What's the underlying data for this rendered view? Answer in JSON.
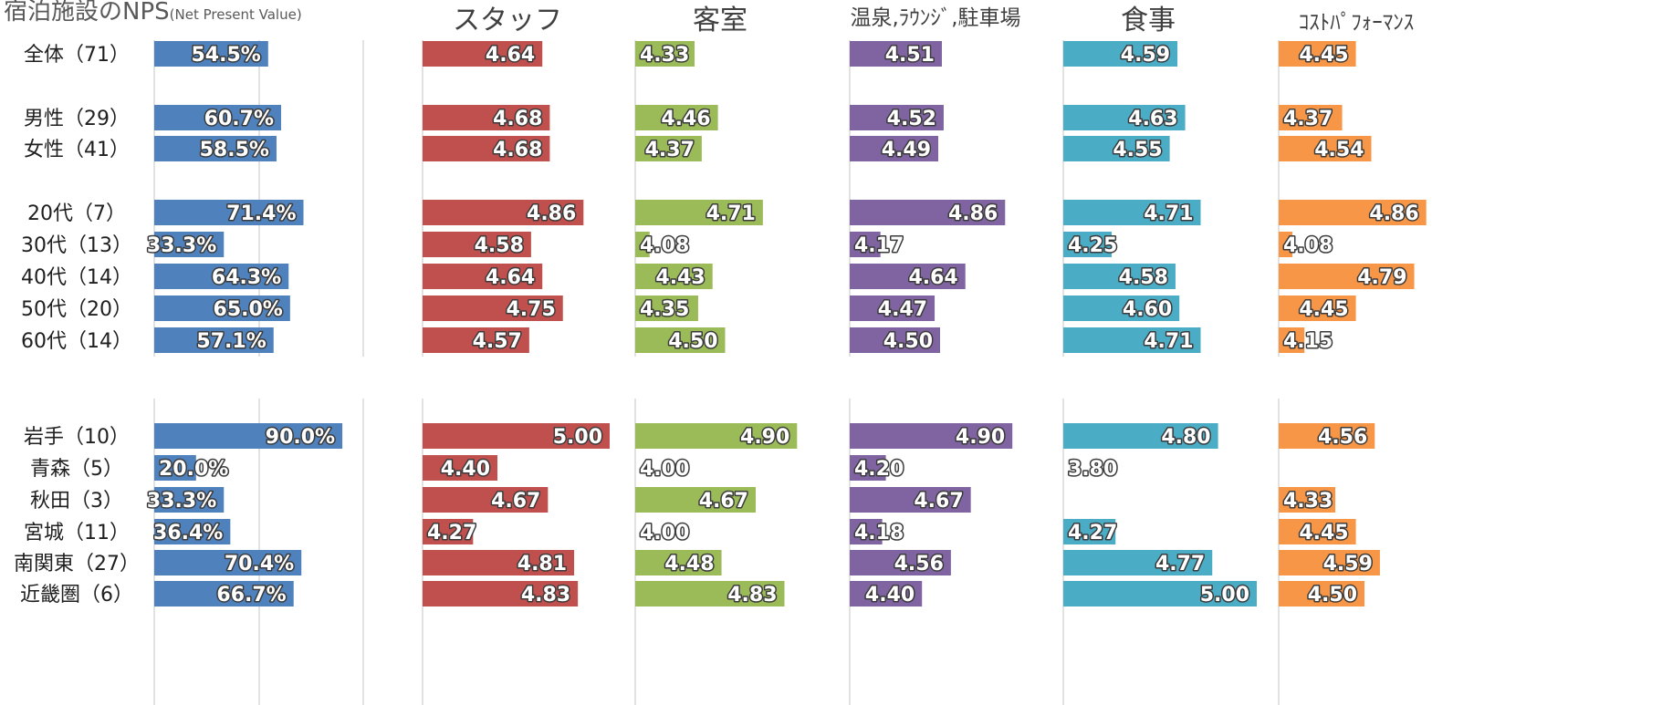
{
  "chart_data": {
    "type": "bar",
    "title": "宿泊施設のNPS",
    "title_note": "(Net Present Value)",
    "orientation": "horizontal",
    "categories": [
      "全体（71）",
      "男性（29）",
      "女性（41）",
      "20代（7）",
      "30代（13）",
      "40代（14）",
      "50代（20）",
      "60代（14）",
      "岩手（10）",
      "青森（5）",
      "秋田（3）",
      "宮城（11）",
      "南関東（27）",
      "近畿圏（6）"
    ],
    "series": [
      {
        "name": "NPS",
        "color": "#4f81bd",
        "unit": "%",
        "values": [
          54.5,
          60.7,
          58.5,
          71.4,
          33.3,
          64.3,
          65.0,
          57.1,
          90.0,
          20.0,
          33.3,
          36.4,
          70.4,
          66.7
        ],
        "labels": [
          "54.5%",
          "60.7%",
          "58.5%",
          "71.4%",
          "33.3%",
          "64.3%",
          "65.0%",
          "57.1%",
          "90.0%",
          "20.0%",
          "33.3%",
          "36.4%",
          "70.4%",
          "66.7%"
        ]
      },
      {
        "name": "スタッフ",
        "color": "#c0504d",
        "values": [
          4.64,
          4.68,
          4.68,
          4.86,
          4.58,
          4.64,
          4.75,
          4.57,
          5.0,
          4.4,
          4.67,
          4.27,
          4.81,
          4.83
        ],
        "labels": [
          "4.64",
          "4.68",
          "4.68",
          "4.86",
          "4.58",
          "4.64",
          "4.75",
          "4.57",
          "5.00",
          "4.40",
          "4.67",
          "4.27",
          "4.81",
          "4.83"
        ]
      },
      {
        "name": "客室",
        "color": "#9bbb59",
        "values": [
          4.33,
          4.46,
          4.37,
          4.71,
          4.08,
          4.43,
          4.35,
          4.5,
          4.9,
          4.0,
          4.67,
          4.0,
          4.48,
          4.83
        ],
        "labels": [
          "4.33",
          "4.46",
          "4.37",
          "4.71",
          "4.08",
          "4.43",
          "4.35",
          "4.50",
          "4.90",
          "4.00",
          "4.67",
          "4.00",
          "4.48",
          "4.83"
        ]
      },
      {
        "name": "温泉,ﾗｳﾝｼﾞ,駐車場",
        "color": "#8064a2",
        "values": [
          4.51,
          4.52,
          4.49,
          4.86,
          4.17,
          4.64,
          4.47,
          4.5,
          4.9,
          4.2,
          4.67,
          4.18,
          4.56,
          4.4
        ],
        "labels": [
          "4.51",
          "4.52",
          "4.49",
          "4.86",
          "4.17",
          "4.64",
          "4.47",
          "4.50",
          "4.90",
          "4.20",
          "4.67",
          "4.18",
          "4.56",
          "4.40"
        ]
      },
      {
        "name": "食事",
        "color": "#4bacc6",
        "values": [
          4.59,
          4.63,
          4.55,
          4.71,
          4.25,
          4.58,
          4.6,
          4.71,
          4.8,
          3.8,
          null,
          4.27,
          4.77,
          5.0
        ],
        "labels": [
          "4.59",
          "4.63",
          "4.55",
          "4.71",
          "4.25",
          "4.58",
          "4.60",
          "4.71",
          "4.80",
          "3.80",
          "",
          "4.27",
          "4.77",
          "5.00"
        ]
      },
      {
        "name": "ｺｽﾄﾊﾟﾌｫｰﾏﾝｽ",
        "color": "#f79646",
        "values": [
          4.45,
          4.37,
          4.54,
          4.86,
          4.08,
          4.79,
          4.45,
          4.15,
          4.56,
          null,
          4.33,
          4.45,
          4.59,
          4.5
        ],
        "labels": [
          "4.45",
          "4.37",
          "4.54",
          "4.86",
          "4.08",
          "4.79",
          "4.45",
          "4.15",
          "4.56",
          "",
          "4.33",
          "4.45",
          "4.59",
          "4.50"
        ]
      }
    ],
    "xlim_nps": [
      0,
      100
    ],
    "xlim_scores": [
      4.0,
      5.0
    ],
    "grid": true,
    "legend": "none"
  }
}
